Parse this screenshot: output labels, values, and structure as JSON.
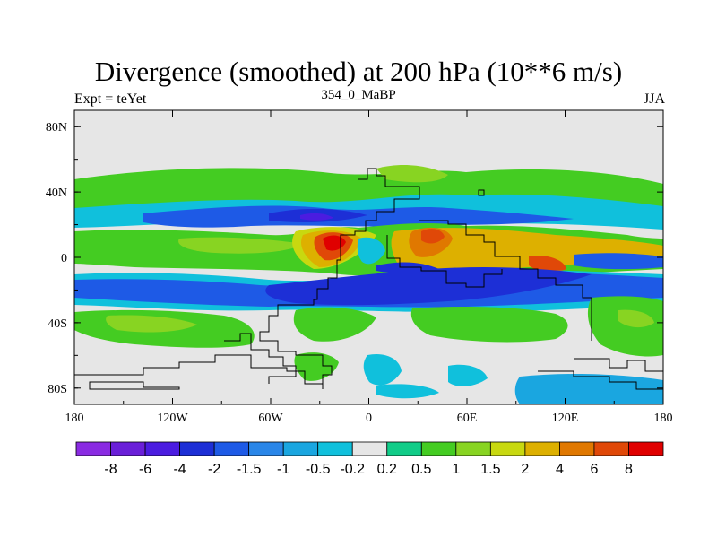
{
  "chart_data": {
    "type": "filled-contour map",
    "title": "Divergence (smoothed) at 200 hPa (10**6 m/s)",
    "subtitle_left": "Expt = teYet",
    "subtitle_center": "354_0_MaBP",
    "subtitle_right": "JJA",
    "x_ticks": [
      "180",
      "120W",
      "60W",
      "0",
      "60E",
      "120E",
      "180"
    ],
    "y_ticks": [
      "80N",
      "40N",
      "0",
      "40S",
      "80S"
    ],
    "x_range_lon": [
      -180,
      180
    ],
    "y_range_lat": [
      -90,
      90
    ],
    "x_tick_values": [
      -180,
      -120,
      -60,
      0,
      60,
      120,
      180
    ],
    "y_tick_values": [
      80,
      40,
      0,
      -40,
      -80
    ],
    "colorbar_labels": [
      "-8",
      "-6",
      "-4",
      "-2",
      "-1.5",
      "-1",
      "-0.5",
      "-0.2",
      "0.2",
      "0.5",
      "1",
      "1.5",
      "2",
      "4",
      "6",
      "8"
    ],
    "colorbar_colors": [
      "#8a2be2",
      "#6a1fd8",
      "#4b1ce0",
      "#1d2fd6",
      "#1e5ae6",
      "#2a86e8",
      "#1aa6e0",
      "#10c0dc",
      "#e6e6e6",
      "#11cc88",
      "#44cc22",
      "#88d422",
      "#c8d810",
      "#ddb000",
      "#e07800",
      "#e04808",
      "#e00000"
    ]
  }
}
